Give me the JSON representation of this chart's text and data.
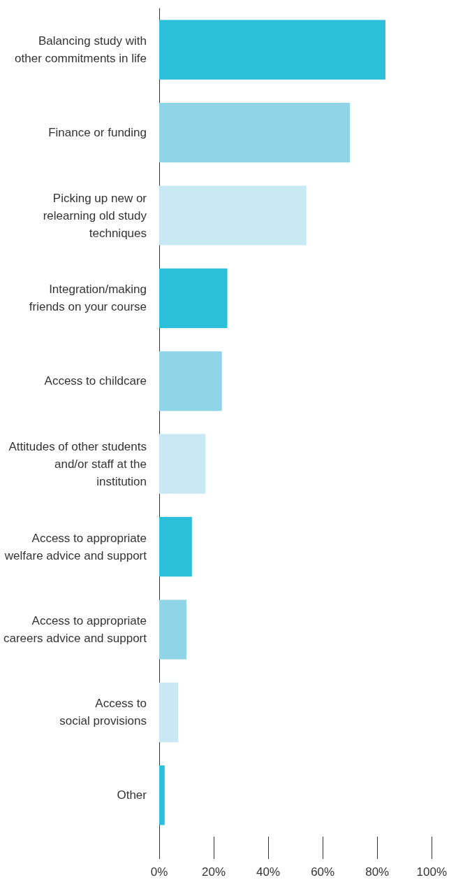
{
  "chart_data": {
    "type": "bar",
    "orientation": "horizontal",
    "categories": [
      "Balancing study with\nother commitments in life",
      "Finance or funding",
      "Picking up new or\nrelearning old study\ntechniques",
      "Integration/making\nfriends on your course",
      "Access to childcare",
      "Attitudes of other students\nand/or staff at the\ninstitution",
      "Access to appropriate\nwelfare advice and support",
      "Access to appropriate\ncareers advice and support",
      "Access to\nsocial provisions",
      "Other"
    ],
    "values": [
      83,
      70,
      54,
      25,
      23,
      17,
      12,
      10,
      7,
      2
    ],
    "colors": [
      "#2bbfda",
      "#90d5e7",
      "#c8e9f3",
      "#2bbfda",
      "#90d5e7",
      "#c8e9f3",
      "#2bbfda",
      "#90d5e7",
      "#c8e9f3",
      "#2bbfda"
    ],
    "xlim": [
      0,
      100
    ],
    "xticks": [
      {
        "value": 0,
        "label": "0%"
      },
      {
        "value": 20,
        "label": "20%"
      },
      {
        "value": 40,
        "label": "40%"
      },
      {
        "value": 60,
        "label": "60%"
      },
      {
        "value": 80,
        "label": "80%"
      },
      {
        "value": 100,
        "label": "100%"
      }
    ],
    "grid": false
  }
}
